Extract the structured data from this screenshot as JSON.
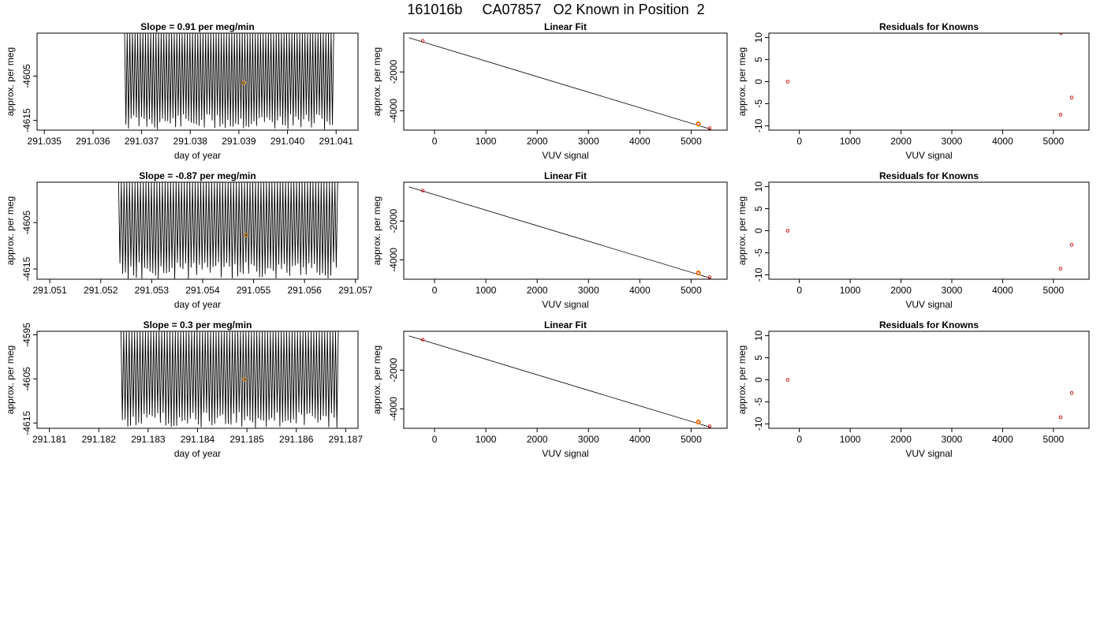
{
  "page_title": "161016b     CA07857   O2 Known in Position  2",
  "colors": {
    "trace": "#000000",
    "highlight": "#ff9900",
    "point": "#cc0000",
    "axes": "#000000"
  },
  "chart_data": [
    {
      "type": "line",
      "title": "Slope =  0.91  per meg/min",
      "xlabel": "day of year",
      "ylabel": "approx. per meg",
      "xlim": [
        291.03485,
        291.04145
      ],
      "ylim": [
        -4617.2,
        -4595.3
      ],
      "xticks": [
        291.035,
        291.036,
        291.037,
        291.038,
        291.039,
        291.04,
        291.041
      ],
      "xtick_labels": [
        "291.035",
        "291.036",
        "291.037",
        "291.038",
        "291.039",
        "291.040",
        "291.041"
      ],
      "yticks": [
        -4605,
        -4615
      ],
      "ytick_labels": [
        "-4605",
        "-4615"
      ],
      "trace": {
        "x_start": 291.03665,
        "x_end": 291.04095,
        "oscillations": 80,
        "low_min": -4613.5,
        "low_max": -4617.2,
        "high": -4595.3
      },
      "highlight_point": {
        "x": 291.0391,
        "y": -4606.5
      }
    },
    {
      "type": "scatter",
      "title": "Linear Fit",
      "xlabel": "VUV signal",
      "ylabel": "approx. per meg",
      "xlim": [
        -600,
        5700
      ],
      "ylim": [
        -5000,
        0
      ],
      "xticks": [
        0,
        1000,
        2000,
        3000,
        4000,
        5000
      ],
      "xtick_labels": [
        "0",
        "1000",
        "2000",
        "3000",
        "4000",
        "5000"
      ],
      "yticks": [
        -2000,
        -4000
      ],
      "ytick_labels": [
        "-2000",
        "-4000"
      ],
      "fit_line": {
        "x": [
          -500,
          5380
        ],
        "y": [
          -240,
          -4950
        ]
      },
      "points": [
        {
          "x": -230,
          "y": -400
        },
        {
          "x": 5140,
          "y": -4680,
          "highlight": true
        },
        {
          "x": 5360,
          "y": -4900
        }
      ]
    },
    {
      "type": "scatter",
      "title": "Residuals for Knowns",
      "xlabel": "VUV signal",
      "ylabel": "approx. per meg",
      "xlim": [
        -600,
        5700
      ],
      "ylim": [
        -11,
        11
      ],
      "xticks": [
        0,
        1000,
        2000,
        3000,
        4000,
        5000
      ],
      "xtick_labels": [
        "0",
        "1000",
        "2000",
        "3000",
        "4000",
        "5000"
      ],
      "yticks": [
        10,
        5,
        0,
        -5,
        -10
      ],
      "ytick_labels": [
        "10",
        "5",
        "0",
        "-5",
        "-10"
      ],
      "points": [
        {
          "x": -230,
          "y": 0
        },
        {
          "x": 5140,
          "y": -7.5
        },
        {
          "x": 5360,
          "y": -3.6
        },
        {
          "x": 5150,
          "y": 11
        }
      ]
    },
    {
      "type": "line",
      "title": "Slope =  -0.87  per meg/min",
      "xlabel": "day of year",
      "ylabel": "approx. per meg",
      "xlim": [
        291.05075,
        291.05705
      ],
      "ylim": [
        -4617.2,
        -4596.3
      ],
      "xticks": [
        291.051,
        291.052,
        291.053,
        291.054,
        291.055,
        291.056,
        291.057
      ],
      "xtick_labels": [
        "291.051",
        "291.052",
        "291.053",
        "291.054",
        "291.055",
        "291.056",
        "291.057"
      ],
      "yticks": [
        -4605,
        -4615
      ],
      "ytick_labels": [
        "-4605",
        "-4615"
      ],
      "trace": {
        "x_start": 291.05235,
        "x_end": 291.05665,
        "oscillations": 80,
        "low_min": -4613.5,
        "low_max": -4617.2,
        "high": -4596.3
      },
      "highlight_point": {
        "x": 291.05485,
        "y": -4607.7
      }
    },
    {
      "type": "scatter",
      "title": "Linear Fit",
      "xlabel": "VUV signal",
      "ylabel": "approx. per meg",
      "xlim": [
        -600,
        5700
      ],
      "ylim": [
        -5000,
        0
      ],
      "xticks": [
        0,
        1000,
        2000,
        3000,
        4000,
        5000
      ],
      "xtick_labels": [
        "0",
        "1000",
        "2000",
        "3000",
        "4000",
        "5000"
      ],
      "yticks": [
        -2000,
        -4000
      ],
      "ytick_labels": [
        "-2000",
        "-4000"
      ],
      "fit_line": {
        "x": [
          -500,
          5380
        ],
        "y": [
          -240,
          -4950
        ]
      },
      "points": [
        {
          "x": -230,
          "y": -430
        },
        {
          "x": 5140,
          "y": -4680,
          "highlight": true
        },
        {
          "x": 5360,
          "y": -4900
        }
      ]
    },
    {
      "type": "scatter",
      "title": "Residuals for Knowns",
      "xlabel": "VUV signal",
      "ylabel": "approx. per meg",
      "xlim": [
        -600,
        5700
      ],
      "ylim": [
        -11,
        11
      ],
      "xticks": [
        0,
        1000,
        2000,
        3000,
        4000,
        5000
      ],
      "xtick_labels": [
        "0",
        "1000",
        "2000",
        "3000",
        "4000",
        "5000"
      ],
      "yticks": [
        10,
        5,
        0,
        -5,
        -10
      ],
      "ytick_labels": [
        "10",
        "5",
        "0",
        "-5",
        "-10"
      ],
      "points": [
        {
          "x": -230,
          "y": 0
        },
        {
          "x": 5140,
          "y": -8.6
        },
        {
          "x": 5360,
          "y": -3.2
        }
      ]
    },
    {
      "type": "line",
      "title": "Slope =  0.3  per meg/min",
      "xlabel": "day of year",
      "ylabel": "approx. per meg",
      "xlim": [
        291.18075,
        291.18725
      ],
      "ylim": [
        -4616.2,
        -4594.2
      ],
      "xticks": [
        291.181,
        291.182,
        291.183,
        291.184,
        291.185,
        291.186,
        291.187
      ],
      "xtick_labels": [
        "291.181",
        "291.182",
        "291.183",
        "291.184",
        "291.185",
        "291.186",
        "291.187"
      ],
      "yticks": [
        -4595,
        -4605,
        -4615
      ],
      "ytick_labels": [
        "-4595",
        "-4605",
        "-4615"
      ],
      "trace": {
        "x_start": 291.18245,
        "x_end": 291.18685,
        "oscillations": 80,
        "low_min": -4612.5,
        "low_max": -4616.2,
        "high": -4594.2
      },
      "highlight_point": {
        "x": 291.18495,
        "y": -4605.1
      }
    },
    {
      "type": "scatter",
      "title": "Linear Fit",
      "xlabel": "VUV signal",
      "ylabel": "approx. per meg",
      "xlim": [
        -600,
        5700
      ],
      "ylim": [
        -5000,
        0
      ],
      "xticks": [
        0,
        1000,
        2000,
        3000,
        4000,
        5000
      ],
      "xtick_labels": [
        "0",
        "1000",
        "2000",
        "3000",
        "4000",
        "5000"
      ],
      "yticks": [
        -2000,
        -4000
      ],
      "ytick_labels": [
        "-2000",
        "-4000"
      ],
      "fit_line": {
        "x": [
          -500,
          5380
        ],
        "y": [
          -240,
          -4950
        ]
      },
      "points": [
        {
          "x": -230,
          "y": -430
        },
        {
          "x": 5140,
          "y": -4680,
          "highlight": true
        },
        {
          "x": 5360,
          "y": -4900
        }
      ]
    },
    {
      "type": "scatter",
      "title": "Residuals for Knowns",
      "xlabel": "VUV signal",
      "ylabel": "approx. per meg",
      "xlim": [
        -600,
        5700
      ],
      "ylim": [
        -11,
        11
      ],
      "xticks": [
        0,
        1000,
        2000,
        3000,
        4000,
        5000
      ],
      "xtick_labels": [
        "0",
        "1000",
        "2000",
        "3000",
        "4000",
        "5000"
      ],
      "yticks": [
        10,
        5,
        0,
        -5,
        -10
      ],
      "ytick_labels": [
        "10",
        "5",
        "0",
        "-5",
        "-10"
      ],
      "points": [
        {
          "x": -230,
          "y": 0
        },
        {
          "x": 5140,
          "y": -8.5
        },
        {
          "x": 5360,
          "y": -3
        }
      ]
    }
  ]
}
